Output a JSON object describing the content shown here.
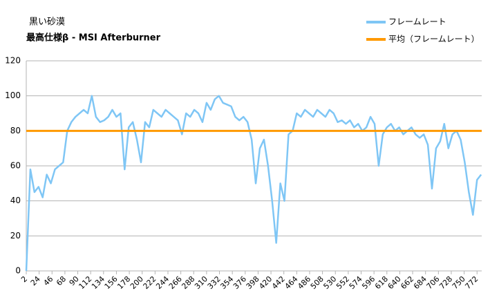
{
  "chart_data": {
    "type": "line",
    "title": "黒い砂漠",
    "subtitle": "最高仕様β - MSI Afterburner",
    "x": [
      2,
      9,
      16,
      23,
      30,
      37,
      44,
      51,
      58,
      65,
      72,
      79,
      86,
      93,
      100,
      107,
      114,
      121,
      128,
      135,
      142,
      149,
      156,
      163,
      170,
      177,
      184,
      191,
      198,
      205,
      212,
      219,
      226,
      233,
      240,
      247,
      254,
      261,
      268,
      275,
      282,
      289,
      296,
      303,
      310,
      317,
      324,
      331,
      338,
      345,
      352,
      359,
      366,
      373,
      380,
      387,
      394,
      401,
      408,
      415,
      422,
      429,
      436,
      443,
      450,
      457,
      464,
      471,
      478,
      485,
      492,
      499,
      506,
      513,
      520,
      527,
      534,
      541,
      548,
      555,
      562,
      569,
      576,
      583,
      590,
      597,
      604,
      611,
      618,
      625,
      632,
      639,
      646,
      653,
      660,
      667,
      674,
      681,
      688,
      695,
      702,
      709,
      716,
      723,
      730,
      737,
      744,
      751,
      758,
      765,
      772,
      779
    ],
    "series": [
      {
        "name": "フレームレート",
        "color": "#7fc6f5",
        "values": [
          0,
          58,
          45,
          48,
          42,
          55,
          50,
          58,
          60,
          62,
          80,
          85,
          88,
          90,
          92,
          90,
          100,
          88,
          85,
          86,
          88,
          92,
          88,
          90,
          58,
          82,
          85,
          75,
          62,
          85,
          82,
          92,
          90,
          88,
          92,
          90,
          88,
          86,
          78,
          90,
          88,
          92,
          90,
          85,
          96,
          92,
          98,
          100,
          96,
          95,
          94,
          88,
          86,
          88,
          85,
          75,
          50,
          70,
          75,
          60,
          40,
          16,
          50,
          40,
          78,
          80,
          90,
          88,
          92,
          90,
          88,
          92,
          90,
          88,
          92,
          90,
          85,
          86,
          84,
          86,
          82,
          84,
          80,
          82,
          88,
          84,
          60,
          78,
          82,
          84,
          80,
          82,
          78,
          80,
          82,
          78,
          76,
          78,
          72,
          47,
          70,
          74,
          84,
          70,
          78,
          80,
          75,
          62,
          45,
          32,
          52,
          55
        ]
      }
    ],
    "average": {
      "name": "平均（フレームレート）",
      "value": 80,
      "color": "#ff9900"
    },
    "xlim": [
      2,
      780
    ],
    "xticks": [
      2,
      24,
      46,
      68,
      90,
      112,
      134,
      156,
      178,
      200,
      222,
      244,
      266,
      288,
      310,
      332,
      354,
      376,
      398,
      420,
      442,
      464,
      486,
      508,
      530,
      552,
      574,
      596,
      618,
      640,
      662,
      684,
      706,
      728,
      750,
      772
    ],
    "ylim": [
      0,
      120
    ],
    "yticks": [
      0,
      20,
      40,
      60,
      80,
      100,
      120
    ],
    "grid": true
  }
}
